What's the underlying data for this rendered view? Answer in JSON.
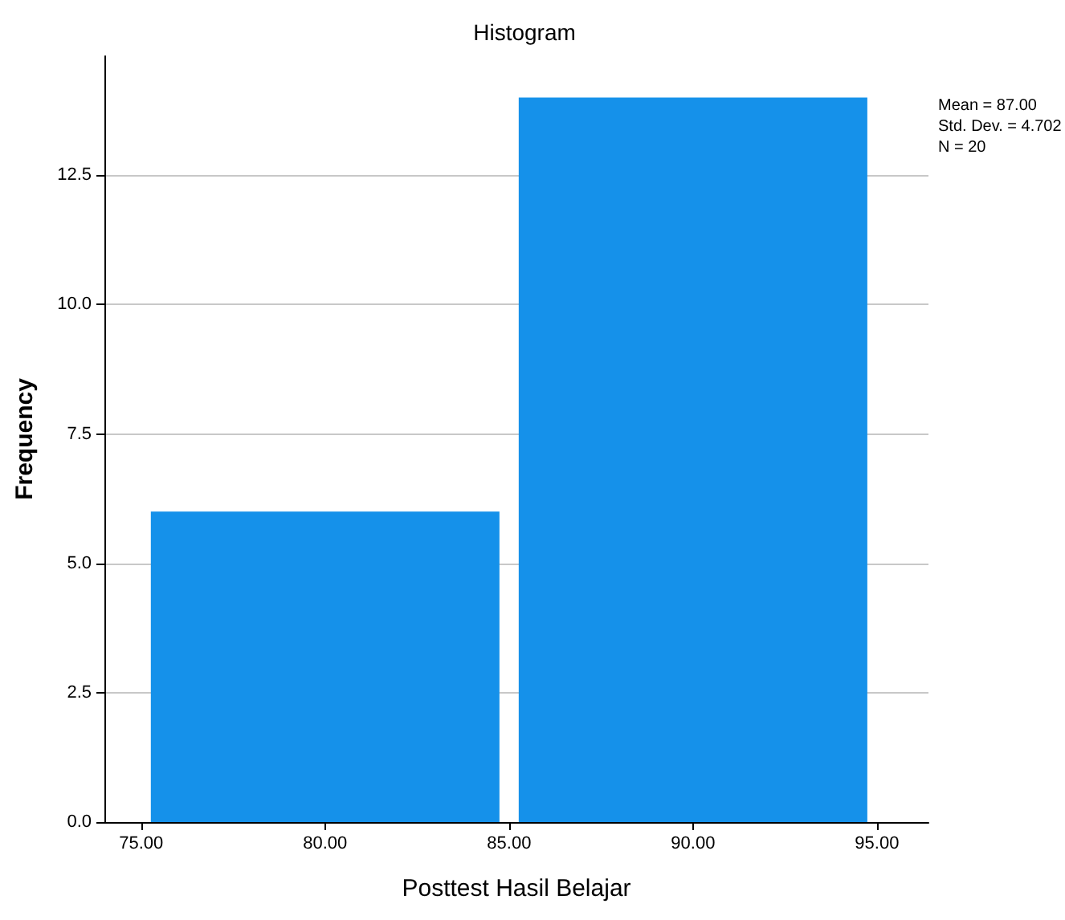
{
  "chart_data": {
    "type": "histogram",
    "title": "Histogram",
    "xlabel": "Posttest Hasil Belajar",
    "ylabel": "Frequency",
    "bins": [
      75,
      85,
      95
    ],
    "values": [
      6,
      14
    ],
    "color": "#1591ea",
    "xlim": [
      74,
      96.4
    ],
    "xticks": [
      {
        "value": 75,
        "label": "75.00"
      },
      {
        "value": 80,
        "label": "80.00"
      },
      {
        "value": 85,
        "label": "85.00"
      },
      {
        "value": 90,
        "label": "90.00"
      },
      {
        "value": 95,
        "label": "95.00"
      }
    ],
    "ylim": [
      0,
      14.8
    ],
    "yticks": [
      {
        "value": 0,
        "label": "0.0"
      },
      {
        "value": 2.5,
        "label": "2.5"
      },
      {
        "value": 5,
        "label": "5.0"
      },
      {
        "value": 7.5,
        "label": "7.5"
      },
      {
        "value": 10,
        "label": "10.0"
      },
      {
        "value": 12.5,
        "label": "12.5"
      }
    ],
    "grid": "y",
    "annotations": [
      "Mean = 87.00",
      "Std. Dev. = 4.702",
      "N = 20"
    ]
  }
}
